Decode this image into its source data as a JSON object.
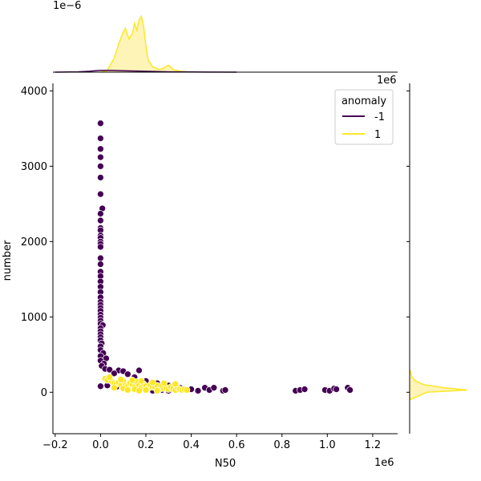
{
  "chart_data": {
    "type": "scatter",
    "subtype": "jointplot",
    "xlabel": "N50",
    "ylabel": "number",
    "x_offset_label": "1e6",
    "y_offset_label": "",
    "top_marginal_offset_label": "1e−6",
    "right_marginal_offset_label": "1e6",
    "xlim": [
      -210000,
      1310000
    ],
    "ylim": [
      -550,
      4100
    ],
    "x_ticks": [
      -200000,
      0,
      200000,
      400000,
      600000,
      800000,
      1000000,
      1200000
    ],
    "x_tick_labels": [
      "−0.2",
      "0.0",
      "0.2",
      "0.4",
      "0.6",
      "0.8",
      "1.0",
      "1.2"
    ],
    "y_ticks": [
      0,
      1000,
      2000,
      3000,
      4000
    ],
    "y_tick_labels": [
      "0",
      "1000",
      "2000",
      "3000",
      "4000"
    ],
    "grid": false,
    "legend": {
      "title": "anomaly",
      "location": "upper right",
      "entries": [
        {
          "label": "-1",
          "color": "#440154"
        },
        {
          "label": "1",
          "color": "#fde725"
        }
      ]
    },
    "series": [
      {
        "name": "-1",
        "color": "#440154",
        "points": [
          [
            0,
            3570
          ],
          [
            0,
            3370
          ],
          [
            0,
            3230
          ],
          [
            0,
            3120
          ],
          [
            0,
            3000
          ],
          [
            0,
            2850
          ],
          [
            0,
            2630
          ],
          [
            8000,
            2440
          ],
          [
            0,
            2370
          ],
          [
            0,
            2280
          ],
          [
            0,
            2180
          ],
          [
            0,
            2150
          ],
          [
            0,
            2080
          ],
          [
            0,
            2050
          ],
          [
            0,
            2000
          ],
          [
            0,
            1970
          ],
          [
            0,
            1930
          ],
          [
            0,
            1780
          ],
          [
            0,
            1700
          ],
          [
            0,
            1600
          ],
          [
            0,
            1540
          ],
          [
            0,
            1470
          ],
          [
            0,
            1400
          ],
          [
            0,
            1330
          ],
          [
            0,
            1260
          ],
          [
            0,
            1200
          ],
          [
            0,
            1160
          ],
          [
            0,
            1120
          ],
          [
            0,
            1080
          ],
          [
            0,
            1030
          ],
          [
            0,
            990
          ],
          [
            0,
            950
          ],
          [
            0,
            910
          ],
          [
            10000,
            890
          ],
          [
            0,
            850
          ],
          [
            0,
            810
          ],
          [
            0,
            770
          ],
          [
            0,
            730
          ],
          [
            0,
            690
          ],
          [
            5000,
            650
          ],
          [
            0,
            610
          ],
          [
            0,
            560
          ],
          [
            12000,
            520
          ],
          [
            0,
            480
          ],
          [
            25000,
            450
          ],
          [
            0,
            420
          ],
          [
            15000,
            380
          ],
          [
            5000,
            350
          ],
          [
            20000,
            310
          ],
          [
            40000,
            300
          ],
          [
            80000,
            290
          ],
          [
            100000,
            280
          ],
          [
            170000,
            290
          ],
          [
            60000,
            250
          ],
          [
            120000,
            240
          ],
          [
            150000,
            200
          ],
          [
            200000,
            150
          ],
          [
            250000,
            120
          ],
          [
            300000,
            90
          ],
          [
            350000,
            60
          ],
          [
            400000,
            40
          ],
          [
            430000,
            20
          ],
          [
            460000,
            60
          ],
          [
            480000,
            30
          ],
          [
            500000,
            60
          ],
          [
            540000,
            20
          ],
          [
            550000,
            30
          ],
          [
            300000,
            20
          ],
          [
            270000,
            30
          ],
          [
            230000,
            20
          ],
          [
            860000,
            20
          ],
          [
            880000,
            30
          ],
          [
            900000,
            40
          ],
          [
            990000,
            30
          ],
          [
            1010000,
            20
          ],
          [
            1030000,
            50
          ],
          [
            1040000,
            40
          ],
          [
            1090000,
            60
          ],
          [
            1100000,
            30
          ],
          [
            0,
            80
          ],
          [
            30000,
            90
          ],
          [
            70000,
            70
          ],
          [
            110000,
            60
          ]
        ]
      },
      {
        "name": "1",
        "color": "#fde725",
        "points": [
          [
            20000,
            180
          ],
          [
            30000,
            160
          ],
          [
            50000,
            140
          ],
          [
            60000,
            120
          ],
          [
            70000,
            110
          ],
          [
            80000,
            130
          ],
          [
            90000,
            100
          ],
          [
            100000,
            150
          ],
          [
            110000,
            90
          ],
          [
            120000,
            80
          ],
          [
            130000,
            120
          ],
          [
            140000,
            100
          ],
          [
            150000,
            70
          ],
          [
            160000,
            140
          ],
          [
            170000,
            90
          ],
          [
            180000,
            60
          ],
          [
            190000,
            110
          ],
          [
            200000,
            80
          ],
          [
            210000,
            50
          ],
          [
            220000,
            100
          ],
          [
            230000,
            70
          ],
          [
            240000,
            60
          ],
          [
            250000,
            90
          ],
          [
            260000,
            40
          ],
          [
            270000,
            80
          ],
          [
            280000,
            50
          ],
          [
            290000,
            60
          ],
          [
            300000,
            40
          ],
          [
            310000,
            70
          ],
          [
            320000,
            50
          ],
          [
            330000,
            30
          ],
          [
            340000,
            60
          ],
          [
            350000,
            40
          ],
          [
            360000,
            30
          ],
          [
            370000,
            40
          ],
          [
            380000,
            30
          ],
          [
            40000,
            200
          ],
          [
            90000,
            170
          ],
          [
            140000,
            160
          ],
          [
            180000,
            150
          ],
          [
            230000,
            130
          ],
          [
            280000,
            120
          ],
          [
            330000,
            110
          ],
          [
            60000,
            60
          ],
          [
            100000,
            50
          ],
          [
            150000,
            40
          ],
          [
            200000,
            30
          ],
          [
            250000,
            20
          ],
          [
            120000,
            30
          ],
          [
            170000,
            20
          ]
        ]
      }
    ],
    "marginal_x": {
      "series": [
        {
          "name": "1",
          "color": "#fde725",
          "fill": "#fff3b0",
          "x": [
            0,
            30000,
            60000,
            80000,
            100000,
            110000,
            125000,
            140000,
            150000,
            160000,
            170000,
            180000,
            190000,
            200000,
            210000,
            230000,
            260000,
            280000,
            300000,
            320000,
            350000,
            400000
          ],
          "density": [
            0.0,
            0.1,
            0.8,
            1.6,
            2.3,
            2.5,
            1.9,
            2.2,
            2.8,
            2.4,
            3.0,
            3.2,
            2.6,
            1.5,
            0.7,
            0.3,
            0.15,
            0.25,
            0.4,
            0.15,
            0.05,
            0.0
          ]
        },
        {
          "name": "-1",
          "color": "#440154",
          "x": [
            -200000,
            -100000,
            -50000,
            0,
            50000,
            100000,
            200000,
            300000,
            400000,
            600000
          ],
          "density": [
            0.0,
            0.02,
            0.05,
            0.1,
            0.1,
            0.08,
            0.05,
            0.02,
            0.01,
            0.0
          ]
        }
      ],
      "ylim": [
        0,
        3.4
      ]
    },
    "marginal_y": {
      "series": [
        {
          "name": "1",
          "color": "#fde725",
          "fill": "#fff3b0",
          "y": [
            -100,
            0,
            30,
            60,
            100,
            150,
            200,
            300
          ],
          "density": [
            0.0,
            0.3,
            1.0,
            0.6,
            0.25,
            0.1,
            0.04,
            0.0
          ]
        }
      ]
    }
  }
}
